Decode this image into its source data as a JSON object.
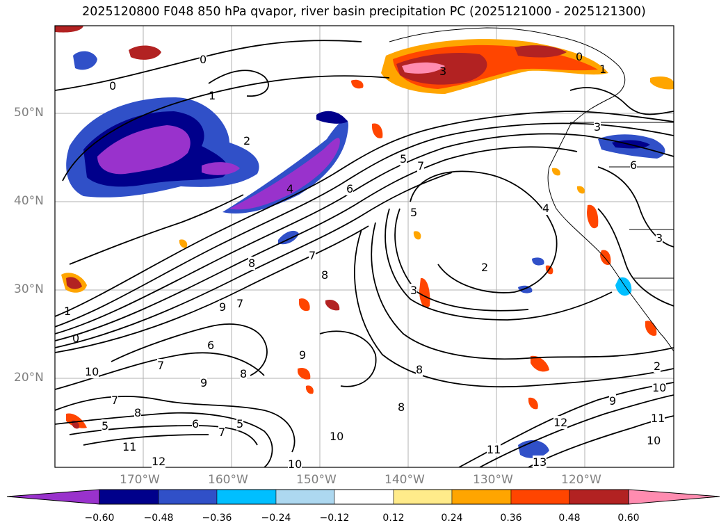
{
  "title": "2025120800 F048 850 hPa qvapor, river basin precipitation PC (2025121000 - 2025121300)",
  "lat_labels": [
    "50°N",
    "40°N",
    "30°N",
    "20°N"
  ],
  "lon_labels": [
    "170°W",
    "160°W",
    "150°W",
    "140°W",
    "130°W",
    "120°W"
  ],
  "colorbar": {
    "ticks": [
      "−0.60",
      "−0.48",
      "−0.36",
      "−0.24",
      "−0.12",
      "0.12",
      "0.24",
      "0.36",
      "0.48",
      "0.60"
    ],
    "colors": [
      "#9932cc",
      "#00008b",
      "#3050c8",
      "#00bfff",
      "#add8f0",
      "#ffffff",
      "#ffeb8a",
      "#ffa500",
      "#ff4500",
      "#b22222",
      "#ff8cb0",
      "#ff8cb0"
    ]
  },
  "contour_labels": [
    "0",
    "1",
    "2",
    "3",
    "4",
    "5",
    "6",
    "7",
    "8",
    "9",
    "10",
    "11",
    "12",
    "13"
  ]
}
